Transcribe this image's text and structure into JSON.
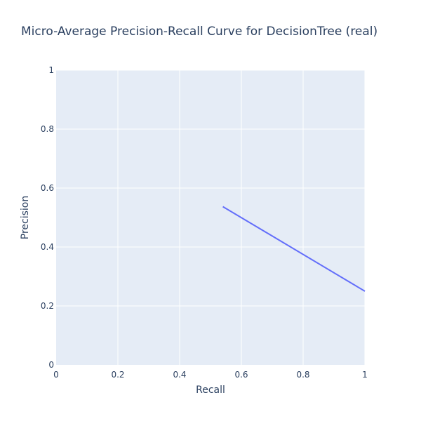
{
  "chart_data": {
    "type": "line",
    "title": "Micro-Average Precision-Recall Curve for DecisionTree (real)",
    "xlabel": "Recall",
    "ylabel": "Precision",
    "xlim": [
      0,
      1
    ],
    "ylim": [
      0,
      1
    ],
    "xticks": [
      "0",
      "0.2",
      "0.4",
      "0.6",
      "0.8",
      "1"
    ],
    "yticks": [
      "0",
      "0.2",
      "0.4",
      "0.6",
      "0.8",
      "1"
    ],
    "grid": true,
    "series": [
      {
        "x": [
          0.54,
          1.0
        ],
        "y": [
          0.537,
          0.25
        ],
        "color": "#636efa"
      }
    ],
    "colors": {
      "plot_background": "#e5ecf6",
      "grid": "#ffffff",
      "text": "#2a3f5f"
    }
  }
}
